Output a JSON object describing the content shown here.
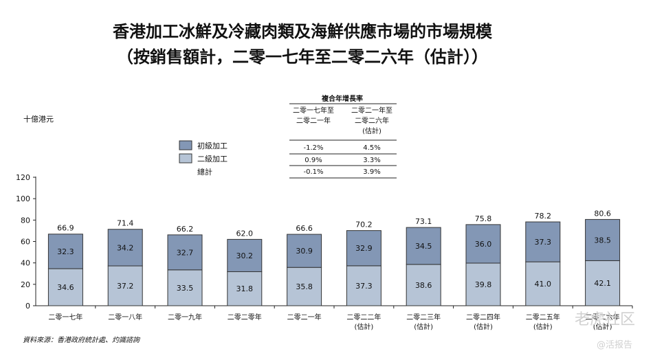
{
  "title_line1": "香港加工冰鮮及冷藏肉類及海鮮供應市場的市場規模",
  "title_line2": "（按銷售額計，二零一七年至二零二六年（估計））",
  "unit_label": "十億港元",
  "source_note": "資料來源：香港政府統計處、灼識諮詢",
  "watermark_text": "老虎社区",
  "watermark_sub": "@活报告",
  "cagr_table": {
    "header": "複合年增長率",
    "col1": [
      "二零一七年至",
      "二零二一年"
    ],
    "col2": [
      "二零二一年至",
      "二零二六年",
      "(估計)"
    ],
    "rows": [
      {
        "name": "初級加工",
        "v1": "-1.2%",
        "v2": "4.5%"
      },
      {
        "name": "二級加工",
        "v1": "0.9%",
        "v2": "3.3%"
      },
      {
        "name": "總計",
        "v1": "-0.1%",
        "v2": "3.9%"
      }
    ]
  },
  "chart_data": {
    "type": "bar",
    "stacked": true,
    "categories": [
      [
        "二零一七年"
      ],
      [
        "二零一八年"
      ],
      [
        "二零一九年"
      ],
      [
        "二零二零年"
      ],
      [
        "二零二一年"
      ],
      [
        "二零二二年",
        "(估計)"
      ],
      [
        "二零二三年",
        "(估計)"
      ],
      [
        "二零二四年",
        "(估計)"
      ],
      [
        "二零二五年",
        "(估計)"
      ],
      [
        "二零二六年",
        "(估計)"
      ]
    ],
    "series": [
      {
        "name": "二級加工",
        "values": [
          34.6,
          37.2,
          33.5,
          31.8,
          35.8,
          37.3,
          38.6,
          39.8,
          41.0,
          42.1
        ],
        "color": "#b6c4d6"
      },
      {
        "name": "初級加工",
        "values": [
          32.3,
          34.2,
          32.7,
          30.2,
          30.9,
          32.9,
          34.5,
          36.0,
          37.3,
          38.5
        ],
        "color": "#8397b5"
      }
    ],
    "totals": [
      "66.9",
      "71.4",
      "66.2",
      "62.0",
      "66.6",
      "70.2",
      "73.1",
      "75.8",
      "78.2",
      "80.6"
    ],
    "ylim": [
      0,
      120
    ],
    "yticks": [
      0,
      20,
      40,
      60,
      80,
      100,
      120
    ],
    "legend": "top-center"
  }
}
